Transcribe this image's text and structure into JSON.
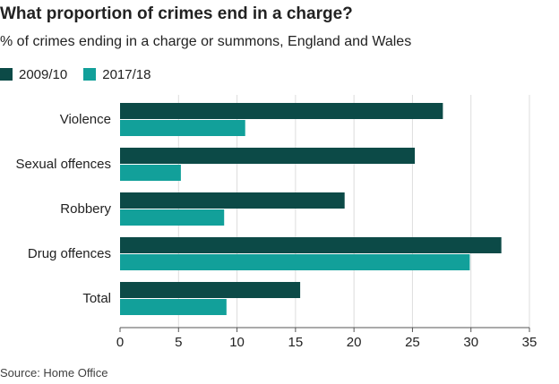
{
  "title": "What proportion of crimes end in a charge?",
  "subtitle": "% of crimes ending in a charge or summons, England and Wales",
  "source": "Source: Home Office",
  "colors": {
    "series1": "#0c4a47",
    "series2": "#12a09a",
    "grid": "#dddddd",
    "axis": "#555555"
  },
  "legend": [
    {
      "label": "2009/10",
      "color": "#0c4a47"
    },
    {
      "label": "2017/18",
      "color": "#12a09a"
    }
  ],
  "chart_data": {
    "type": "bar",
    "orientation": "horizontal",
    "categories": [
      "Violence",
      "Sexual offences",
      "Robbery",
      "Drug offences",
      "Total"
    ],
    "series": [
      {
        "name": "2009/10",
        "values": [
          27.6,
          25.2,
          19.2,
          32.6,
          15.4
        ]
      },
      {
        "name": "2017/18",
        "values": [
          10.7,
          5.2,
          8.9,
          29.9,
          9.1
        ]
      }
    ],
    "xlim": [
      0,
      35
    ],
    "xticks": [
      0,
      5,
      10,
      15,
      20,
      25,
      30,
      35
    ],
    "grid": true,
    "legend_position": "top-left"
  }
}
